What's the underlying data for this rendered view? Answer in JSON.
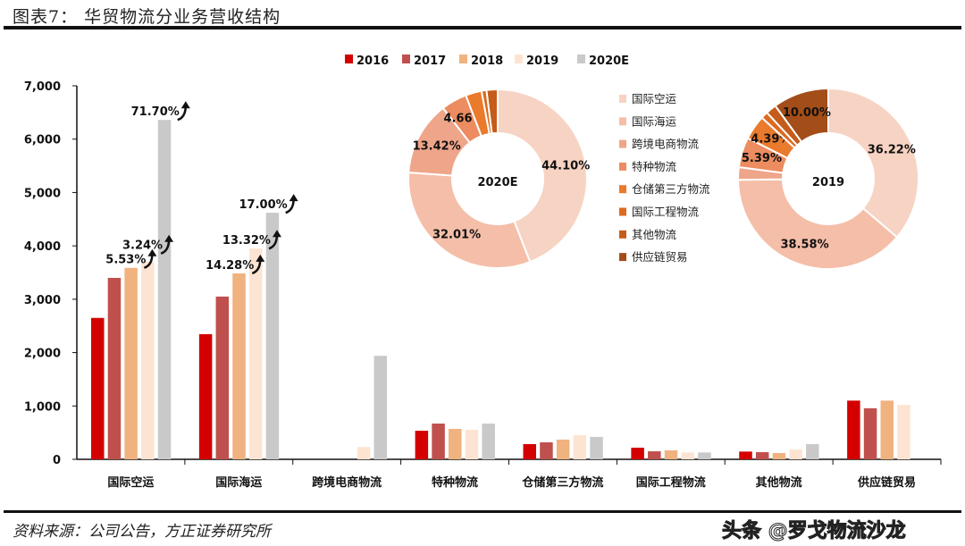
{
  "header": {
    "title": "图表7：  华贸物流分业务营收结构"
  },
  "footer": {
    "source": "资料来源：公司公告，方正证券研究所",
    "watermark": "头条 @罗戈物流沙龙"
  },
  "chart_data": [
    {
      "type": "bar",
      "categories": [
        "国际空运",
        "国际海运",
        "跨境电商物流",
        "特种物流",
        "仓储第三方物流",
        "国际工程物流",
        "其他物流",
        "供应链贸易"
      ],
      "ylim": [
        0,
        7000
      ],
      "yticks": [
        "0",
        "1,000",
        "2,000",
        "3,000",
        "4,000",
        "5,000",
        "6,000",
        "7,000"
      ],
      "yticks_values": [
        0,
        1000,
        2000,
        3000,
        4000,
        5000,
        6000,
        7000
      ],
      "legend_position": "top",
      "grid": false,
      "series": [
        {
          "name": "2016",
          "color": "#d40000",
          "values": [
            2650,
            2345,
            null,
            536,
            285,
            218,
            145,
            1100
          ]
        },
        {
          "name": "2017",
          "color": "#c0504d",
          "values": [
            3400,
            3050,
            null,
            670,
            318,
            150,
            135,
            957
          ]
        },
        {
          "name": "2018",
          "color": "#f0b27f",
          "values": [
            3588,
            3485,
            null,
            570,
            370,
            168,
            117,
            1100
          ]
        },
        {
          "name": "2019",
          "color": "#fde4d2",
          "values": [
            3704,
            3949,
            230,
            553,
            452,
            128,
            184,
            1020
          ]
        },
        {
          "name": "2020E",
          "color": "#c9c9c9",
          "values": [
            6360,
            4620,
            1940,
            670,
            420,
            128,
            285,
            null
          ]
        }
      ],
      "annotations": [
        {
          "category": "国际空运",
          "series": "2018",
          "text": "5.53%"
        },
        {
          "category": "国际空运",
          "series": "2019",
          "text": "3.24%"
        },
        {
          "category": "国际空运",
          "series": "2020E",
          "text": "71.70%"
        },
        {
          "category": "国际海运",
          "series": "2018",
          "text": "14.28%"
        },
        {
          "category": "国际海运",
          "series": "2019",
          "text": "13.32%"
        },
        {
          "category": "国际海运",
          "series": "2020E",
          "text": "17.00%"
        }
      ]
    },
    {
      "type": "pie",
      "title": "2020E",
      "donut": true,
      "labels": [
        "国际空运",
        "国际海运",
        "跨境电商物流",
        "特种物流",
        "仓储第三方物流",
        "国际工程物流",
        "其他物流",
        "供应链贸易"
      ],
      "values": [
        44.1,
        32.01,
        13.42,
        4.66,
        2.91,
        0.89,
        2.01,
        0
      ],
      "data_labels": [
        "44.10%",
        "32.01%",
        "13.42%",
        "4.66%",
        "",
        "",
        "",
        ""
      ]
    },
    {
      "type": "pie",
      "title": "2019",
      "donut": true,
      "labels": [
        "国际空运",
        "国际海运",
        "跨境电商物流",
        "特种物流",
        "仓储第三方物流",
        "国际工程物流",
        "其他物流",
        "供应链贸易"
      ],
      "values": [
        36.22,
        38.58,
        2.25,
        5.39,
        4.39,
        1.26,
        1.91,
        10.0
      ],
      "data_labels": [
        "36.22%",
        "38.58%",
        "",
        "5.39%",
        "4.39%",
        "",
        "",
        "10.00%"
      ]
    }
  ],
  "pie_legend": {
    "labels": [
      "国际空运",
      "国际海运",
      "跨境电商物流",
      "特种物流",
      "仓储第三方物流",
      "国际工程物流",
      "其他物流",
      "供应链贸易"
    ],
    "colors": [
      "#f7d3c3",
      "#f5bea8",
      "#efa58a",
      "#ec8c60",
      "#ea7a2c",
      "#dc6a1f",
      "#c55c1b",
      "#a34d18"
    ]
  }
}
